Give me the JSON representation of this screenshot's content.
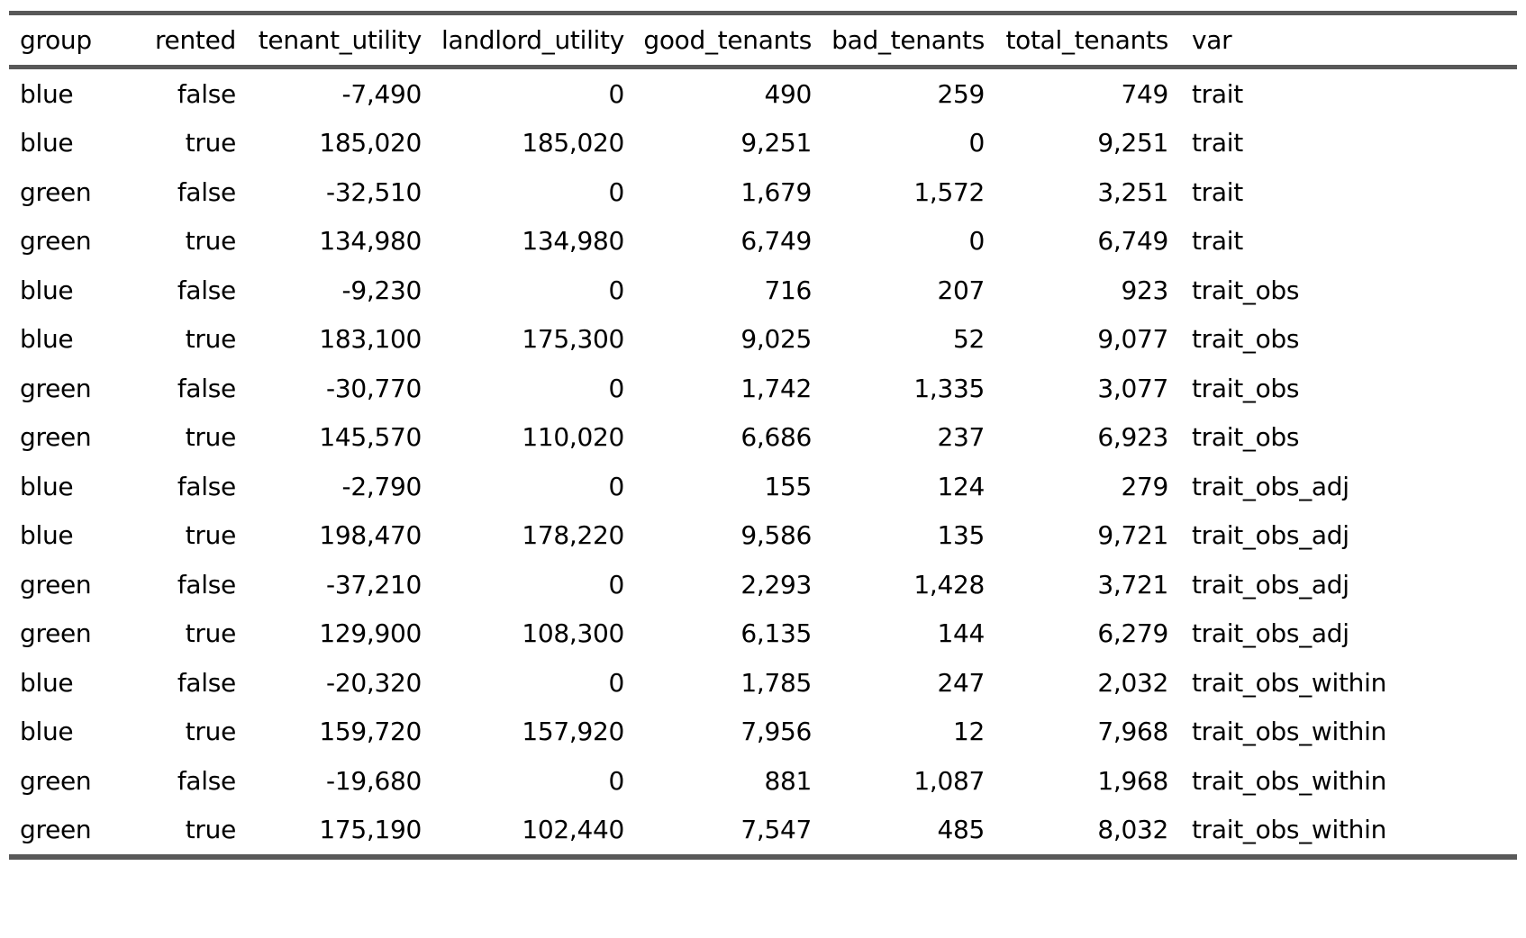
{
  "styles": {
    "rule_color": "#595959",
    "text_color": "#000000",
    "background_color": "#ffffff"
  },
  "table": {
    "columns": [
      {
        "key": "group",
        "label": "group",
        "align": "left"
      },
      {
        "key": "rented",
        "label": "rented",
        "align": "right"
      },
      {
        "key": "tenant_utility",
        "label": "tenant_utility",
        "align": "right"
      },
      {
        "key": "landlord_utility",
        "label": "landlord_utility",
        "align": "right"
      },
      {
        "key": "good_tenants",
        "label": "good_tenants",
        "align": "right"
      },
      {
        "key": "bad_tenants",
        "label": "bad_tenants",
        "align": "right"
      },
      {
        "key": "total_tenants",
        "label": "total_tenants",
        "align": "right"
      },
      {
        "key": "var",
        "label": "var",
        "align": "left"
      }
    ],
    "rows": [
      [
        "blue",
        "false",
        "-7,490",
        "0",
        "490",
        "259",
        "749",
        "trait"
      ],
      [
        "blue",
        "true",
        "185,020",
        "185,020",
        "9,251",
        "0",
        "9,251",
        "trait"
      ],
      [
        "green",
        "false",
        "-32,510",
        "0",
        "1,679",
        "1,572",
        "3,251",
        "trait"
      ],
      [
        "green",
        "true",
        "134,980",
        "134,980",
        "6,749",
        "0",
        "6,749",
        "trait"
      ],
      [
        "blue",
        "false",
        "-9,230",
        "0",
        "716",
        "207",
        "923",
        "trait_obs"
      ],
      [
        "blue",
        "true",
        "183,100",
        "175,300",
        "9,025",
        "52",
        "9,077",
        "trait_obs"
      ],
      [
        "green",
        "false",
        "-30,770",
        "0",
        "1,742",
        "1,335",
        "3,077",
        "trait_obs"
      ],
      [
        "green",
        "true",
        "145,570",
        "110,020",
        "6,686",
        "237",
        "6,923",
        "trait_obs"
      ],
      [
        "blue",
        "false",
        "-2,790",
        "0",
        "155",
        "124",
        "279",
        "trait_obs_adj"
      ],
      [
        "blue",
        "true",
        "198,470",
        "178,220",
        "9,586",
        "135",
        "9,721",
        "trait_obs_adj"
      ],
      [
        "green",
        "false",
        "-37,210",
        "0",
        "2,293",
        "1,428",
        "3,721",
        "trait_obs_adj"
      ],
      [
        "green",
        "true",
        "129,900",
        "108,300",
        "6,135",
        "144",
        "6,279",
        "trait_obs_adj"
      ],
      [
        "blue",
        "false",
        "-20,320",
        "0",
        "1,785",
        "247",
        "2,032",
        "trait_obs_within"
      ],
      [
        "blue",
        "true",
        "159,720",
        "157,920",
        "7,956",
        "12",
        "7,968",
        "trait_obs_within"
      ],
      [
        "green",
        "false",
        "-19,680",
        "0",
        "881",
        "1,087",
        "1,968",
        "trait_obs_within"
      ],
      [
        "green",
        "true",
        "175,190",
        "102,440",
        "7,547",
        "485",
        "8,032",
        "trait_obs_within"
      ]
    ]
  },
  "chart_data": {
    "type": "table",
    "title": "",
    "columns": [
      "group",
      "rented",
      "tenant_utility",
      "landlord_utility",
      "good_tenants",
      "bad_tenants",
      "total_tenants",
      "var"
    ],
    "rows": [
      [
        "blue",
        false,
        -7490,
        0,
        490,
        259,
        749,
        "trait"
      ],
      [
        "blue",
        true,
        185020,
        185020,
        9251,
        0,
        9251,
        "trait"
      ],
      [
        "green",
        false,
        -32510,
        0,
        1679,
        1572,
        3251,
        "trait"
      ],
      [
        "green",
        true,
        134980,
        134980,
        6749,
        0,
        6749,
        "trait"
      ],
      [
        "blue",
        false,
        -9230,
        0,
        716,
        207,
        923,
        "trait_obs"
      ],
      [
        "blue",
        true,
        183100,
        175300,
        9025,
        52,
        9077,
        "trait_obs"
      ],
      [
        "green",
        false,
        -30770,
        0,
        1742,
        1335,
        3077,
        "trait_obs"
      ],
      [
        "green",
        true,
        145570,
        110020,
        6686,
        237,
        6923,
        "trait_obs"
      ],
      [
        "blue",
        false,
        -2790,
        0,
        155,
        124,
        279,
        "trait_obs_adj"
      ],
      [
        "blue",
        true,
        198470,
        178220,
        9586,
        135,
        9721,
        "trait_obs_adj"
      ],
      [
        "green",
        false,
        -37210,
        0,
        2293,
        1428,
        3721,
        "trait_obs_adj"
      ],
      [
        "green",
        true,
        129900,
        108300,
        6135,
        144,
        6279,
        "trait_obs_adj"
      ],
      [
        "blue",
        false,
        -20320,
        0,
        1785,
        247,
        2032,
        "trait_obs_within"
      ],
      [
        "blue",
        true,
        159720,
        157920,
        7956,
        12,
        7968,
        "trait_obs_within"
      ],
      [
        "green",
        false,
        -19680,
        0,
        881,
        1087,
        1968,
        "trait_obs_within"
      ],
      [
        "green",
        true,
        175190,
        102440,
        7547,
        485,
        8032,
        "trait_obs_within"
      ]
    ]
  }
}
